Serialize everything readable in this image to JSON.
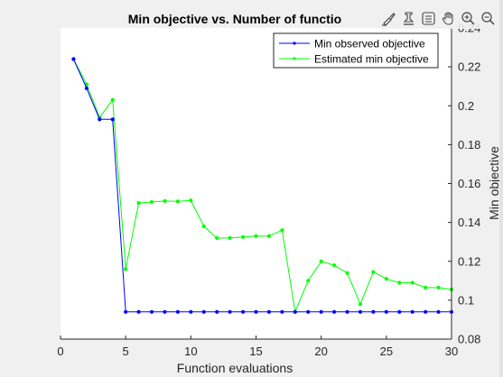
{
  "chart_data": {
    "type": "line",
    "title": "Min objective vs. Number of functio",
    "xlabel": "Function evaluations",
    "ylabel": "Min objective",
    "xlim": [
      0,
      30
    ],
    "ylim": [
      0.08,
      0.24
    ],
    "xticks": [
      0,
      5,
      10,
      15,
      20,
      25,
      30
    ],
    "yticks": [
      0.08,
      0.1,
      0.12,
      0.14,
      0.16,
      0.18,
      0.2,
      0.22,
      0.24
    ],
    "ytick_labels": [
      "0.08",
      "0.1",
      "0.12",
      "0.14",
      "0.16",
      "0.18",
      "0.2",
      "0.22",
      "0.24"
    ],
    "yaxis_location": "right",
    "grid": false,
    "legend_position": "top-right",
    "x": [
      1,
      2,
      3,
      4,
      5,
      6,
      7,
      8,
      9,
      10,
      11,
      12,
      13,
      14,
      15,
      16,
      17,
      18,
      19,
      20,
      21,
      22,
      23,
      24,
      25,
      26,
      27,
      28,
      29,
      30
    ],
    "series": [
      {
        "name": "Min observed objective",
        "color": "#0000ff",
        "values": [
          0.224,
          0.209,
          0.193,
          0.193,
          0.094,
          0.094,
          0.094,
          0.094,
          0.094,
          0.094,
          0.094,
          0.094,
          0.094,
          0.094,
          0.094,
          0.094,
          0.094,
          0.094,
          0.094,
          0.094,
          0.094,
          0.094,
          0.094,
          0.094,
          0.094,
          0.094,
          0.094,
          0.094,
          0.094,
          0.094
        ]
      },
      {
        "name": "Estimated min objective",
        "color": "#00ff00",
        "values": [
          0.224,
          0.211,
          0.194,
          0.203,
          0.116,
          0.15,
          0.1505,
          0.151,
          0.1508,
          0.1513,
          0.138,
          0.132,
          0.132,
          0.1325,
          0.133,
          0.133,
          0.136,
          0.094,
          0.11,
          0.12,
          0.118,
          0.114,
          0.098,
          0.1145,
          0.111,
          0.109,
          0.109,
          0.1065,
          0.1065,
          0.1055
        ]
      }
    ]
  },
  "toolbar": {
    "icons": [
      "brush-icon",
      "data-tips-icon",
      "legend-icon",
      "pan-hand-icon",
      "zoom-in-icon",
      "zoom-out-icon",
      "home-icon"
    ]
  }
}
